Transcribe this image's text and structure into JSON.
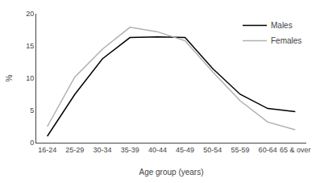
{
  "chart_data": {
    "type": "line",
    "categories": [
      "16-24",
      "25-29",
      "30-34",
      "35-39",
      "40-44",
      "45-49",
      "50-54",
      "55-59",
      "60-64",
      "65 & over"
    ],
    "series": [
      {
        "name": "Males",
        "color": "#000000",
        "values": [
          1.0,
          7.5,
          13.0,
          16.3,
          16.4,
          16.3,
          11.5,
          7.5,
          5.3,
          4.8
        ]
      },
      {
        "name": "Females",
        "color": "#b0b0b0",
        "values": [
          2.5,
          10.2,
          14.5,
          17.9,
          17.2,
          15.8,
          11.0,
          6.5,
          3.2,
          2.0
        ]
      }
    ],
    "xlabel": "Age group (years)",
    "ylabel": "%",
    "ylim": [
      0,
      20
    ],
    "yticks": [
      0,
      5,
      10,
      15,
      20
    ],
    "grid": false,
    "legend": "upper right"
  }
}
